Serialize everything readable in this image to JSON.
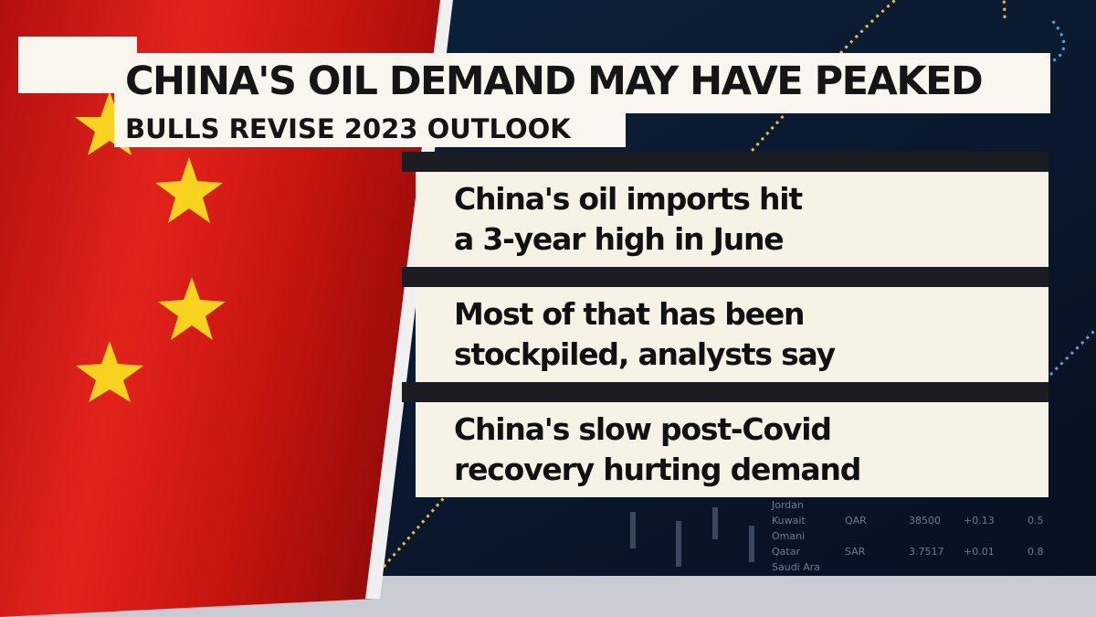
{
  "headline": {
    "title": "CHINA'S OIL DEMAND MAY HAVE PEAKED",
    "subtitle": "BULLS REVISE 2023 OUTLOOK"
  },
  "bullets": [
    {
      "lines": [
        "China's oil imports hit",
        "a 3-year high in June"
      ]
    },
    {
      "lines": [
        "Most of that has been",
        "stockpiled, analysts say"
      ]
    },
    {
      "lines": [
        "China's slow post-Covid",
        "recovery hurting demand"
      ]
    }
  ],
  "background_board": {
    "rows": [
      [
        "Jordan"
      ],
      [
        "Kuwait",
        "QAR",
        "38500",
        "+0.13",
        "0.5"
      ],
      [
        "Omani"
      ],
      [
        "Qatar",
        "SAR",
        "3.7517",
        "+0.01",
        "0.8"
      ],
      [
        "Saudi Ara"
      ]
    ]
  }
}
